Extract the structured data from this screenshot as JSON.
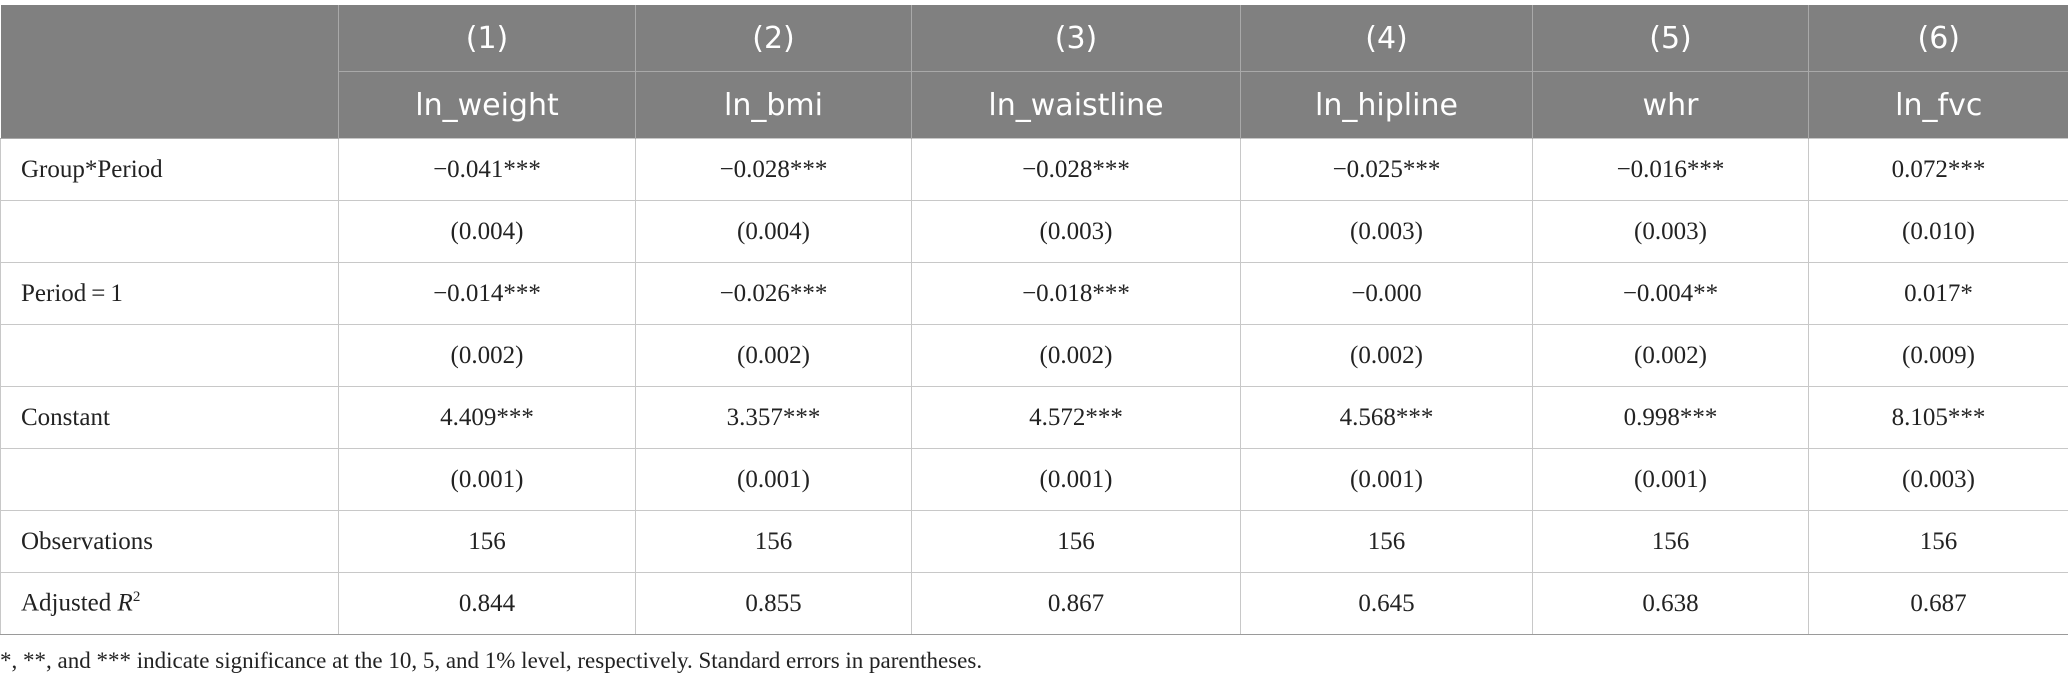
{
  "table": {
    "column_numbers": [
      "(1)",
      "(2)",
      "(3)",
      "(4)",
      "(5)",
      "(6)"
    ],
    "column_names": [
      "ln_weight",
      "ln_bmi",
      "ln_waistline",
      "ln_hipline",
      "whr",
      "ln_fvc"
    ],
    "rows": [
      {
        "label": "Group*Period",
        "values": [
          "−0.041***",
          "−0.028***",
          "−0.028***",
          "−0.025***",
          "−0.016***",
          "0.072***"
        ]
      },
      {
        "label": "",
        "values": [
          "(0.004)",
          "(0.004)",
          "(0.003)",
          "(0.003)",
          "(0.003)",
          "(0.010)"
        ]
      },
      {
        "label": "Period = 1",
        "values": [
          "−0.014***",
          "−0.026***",
          "−0.018***",
          "−0.000",
          "−0.004**",
          "0.017*"
        ]
      },
      {
        "label": "",
        "values": [
          "(0.002)",
          "(0.002)",
          "(0.002)",
          "(0.002)",
          "(0.002)",
          "(0.009)"
        ]
      },
      {
        "label": "Constant",
        "values": [
          "4.409***",
          "3.357***",
          "4.572***",
          "4.568***",
          "0.998***",
          "8.105***"
        ]
      },
      {
        "label": "",
        "values": [
          "(0.001)",
          "(0.001)",
          "(0.001)",
          "(0.001)",
          "(0.001)",
          "(0.003)"
        ]
      },
      {
        "label": "Observations",
        "values": [
          "156",
          "156",
          "156",
          "156",
          "156",
          "156"
        ]
      }
    ],
    "r2_row": {
      "label_prefix": "Adjusted ",
      "label_symbol": "R",
      "label_sup": "2",
      "values": [
        "0.844",
        "0.855",
        "0.867",
        "0.645",
        "0.638",
        "0.687"
      ]
    }
  },
  "footnote": "*, **, and *** indicate significance at the 10, 5, and 1% level, respectively. Standard errors in parentheses."
}
